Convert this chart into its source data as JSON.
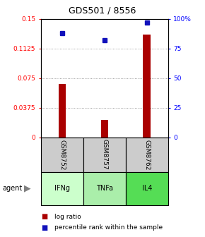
{
  "title": "GDS501 / 8556",
  "samples": [
    "GSM8752",
    "GSM8757",
    "GSM8762"
  ],
  "agents": [
    "IFNg",
    "TNFa",
    "IL4"
  ],
  "log_ratios": [
    0.068,
    0.022,
    0.13
  ],
  "percentile_ranks": [
    88,
    82,
    97
  ],
  "bar_color": "#aa0000",
  "point_color": "#1111bb",
  "left_ylim": [
    0,
    0.15
  ],
  "right_ylim": [
    0,
    100
  ],
  "left_yticks": [
    0,
    0.0375,
    0.075,
    0.1125,
    0.15
  ],
  "left_yticklabels": [
    "0",
    "0.0375",
    "0.075",
    "0.1125",
    "0.15"
  ],
  "right_yticks": [
    0,
    25,
    50,
    75,
    100
  ],
  "right_yticklabels": [
    "0",
    "25",
    "50",
    "75",
    "100%"
  ],
  "agent_colors": [
    "#ccffcc",
    "#aaeea a",
    "#55dd55"
  ],
  "sample_box_color": "#cccccc",
  "legend_bar_color": "#aa0000",
  "legend_point_color": "#1111bb",
  "grid_color": "#888888",
  "bar_width": 0.18
}
